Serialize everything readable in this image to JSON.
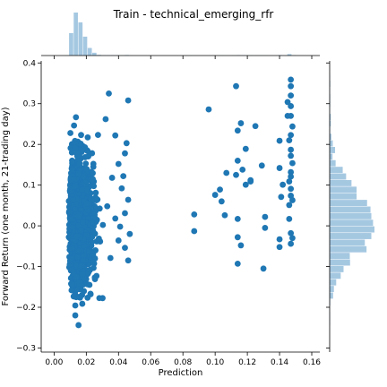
{
  "chart_data": {
    "type": "scatter",
    "title": "Train - technical_emerging_rfr",
    "xlabel": "Prediction",
    "ylabel": "Forward Return (one month, 21-trading day)",
    "xlim": [
      -0.008,
      0.165
    ],
    "ylim": [
      -0.31,
      0.405
    ],
    "xticks": [
      "0.00",
      "0.02",
      "0.04",
      "0.06",
      "0.08",
      "0.10",
      "0.12",
      "0.14",
      "0.16"
    ],
    "xtick_values": [
      0.0,
      0.02,
      0.04,
      0.06,
      0.08,
      0.1,
      0.12,
      0.14,
      0.16
    ],
    "yticks": [
      "−0.3",
      "−0.2",
      "−0.1",
      "0.0",
      "0.1",
      "0.2",
      "0.3",
      "0.4"
    ],
    "ytick_values": [
      -0.3,
      -0.2,
      -0.1,
      0.0,
      0.1,
      0.2,
      0.3,
      0.4
    ],
    "grid": false,
    "legend": "none",
    "colors": {
      "points": "#1f77b4",
      "marginal_bars": "#a5c8e1"
    },
    "marginals": {
      "x_histogram": "top",
      "y_histogram": "right"
    },
    "dense_cluster": {
      "description_x_range": [
        0.008,
        0.03
      ],
      "description_y_range": [
        -0.28,
        0.27
      ]
    },
    "series": [
      {
        "values": [
          [
            0.034,
            0.325
          ],
          [
            0.046,
            0.308
          ],
          [
            0.032,
            0.262
          ],
          [
            0.038,
            0.222
          ],
          [
            0.045,
            0.203
          ],
          [
            0.044,
            0.178
          ],
          [
            0.04,
            0.152
          ],
          [
            0.036,
            0.118
          ],
          [
            0.042,
            0.092
          ],
          [
            0.046,
            0.064
          ],
          [
            0.044,
            0.031
          ],
          [
            0.041,
            -0.002
          ],
          [
            0.047,
            -0.02
          ],
          [
            0.04,
            -0.036
          ],
          [
            0.044,
            -0.054
          ],
          [
            0.046,
            -0.085
          ],
          [
            0.035,
            -0.079
          ],
          [
            0.033,
            0.048
          ],
          [
            0.038,
            0.018
          ],
          [
            0.043,
            0.122
          ],
          [
            0.096,
            0.286
          ],
          [
            0.087,
            0.028
          ],
          [
            0.087,
            -0.013
          ],
          [
            0.106,
            0.026
          ],
          [
            0.107,
            0.13
          ],
          [
            0.103,
            0.089
          ],
          [
            0.104,
            0.06
          ],
          [
            0.1,
            0.076
          ],
          [
            0.113,
            0.343
          ],
          [
            0.116,
            0.252
          ],
          [
            0.114,
            0.234
          ],
          [
            0.114,
            0.16
          ],
          [
            0.113,
            0.125
          ],
          [
            0.117,
            0.138
          ],
          [
            0.119,
            0.101
          ],
          [
            0.119,
            0.189
          ],
          [
            0.122,
            0.109
          ],
          [
            0.114,
            0.017
          ],
          [
            0.114,
            -0.028
          ],
          [
            0.116,
            -0.048
          ],
          [
            0.114,
            -0.093
          ],
          [
            0.125,
            0.245
          ],
          [
            0.122,
            0.112
          ],
          [
            0.129,
            0.148
          ],
          [
            0.131,
            0.022
          ],
          [
            0.131,
            -0.005
          ],
          [
            0.13,
            -0.105
          ],
          [
            0.14,
            0.142
          ],
          [
            0.14,
            0.209
          ],
          [
            0.142,
            0.101
          ],
          [
            0.141,
            0.071
          ],
          [
            0.14,
            -0.033
          ],
          [
            0.14,
            -0.052
          ],
          [
            0.145,
            0.304
          ],
          [
            0.145,
            0.27
          ],
          [
            0.147,
            0.359
          ],
          [
            0.147,
            0.343
          ],
          [
            0.147,
            0.32
          ],
          [
            0.147,
            0.294
          ],
          [
            0.147,
            0.27
          ],
          [
            0.148,
            0.244
          ],
          [
            0.147,
            0.223
          ],
          [
            0.146,
            0.21
          ],
          [
            0.147,
            0.187
          ],
          [
            0.147,
            0.172
          ],
          [
            0.148,
            0.154
          ],
          [
            0.147,
            0.132
          ],
          [
            0.147,
            0.121
          ],
          [
            0.146,
            0.109
          ],
          [
            0.147,
            0.091
          ],
          [
            0.147,
            0.074
          ],
          [
            0.148,
            0.063
          ],
          [
            0.146,
            0.051
          ],
          [
            0.147,
            -0.018
          ],
          [
            0.148,
            -0.03
          ],
          [
            0.147,
            -0.044
          ],
          [
            0.146,
            0.017
          ]
        ]
      }
    ]
  }
}
